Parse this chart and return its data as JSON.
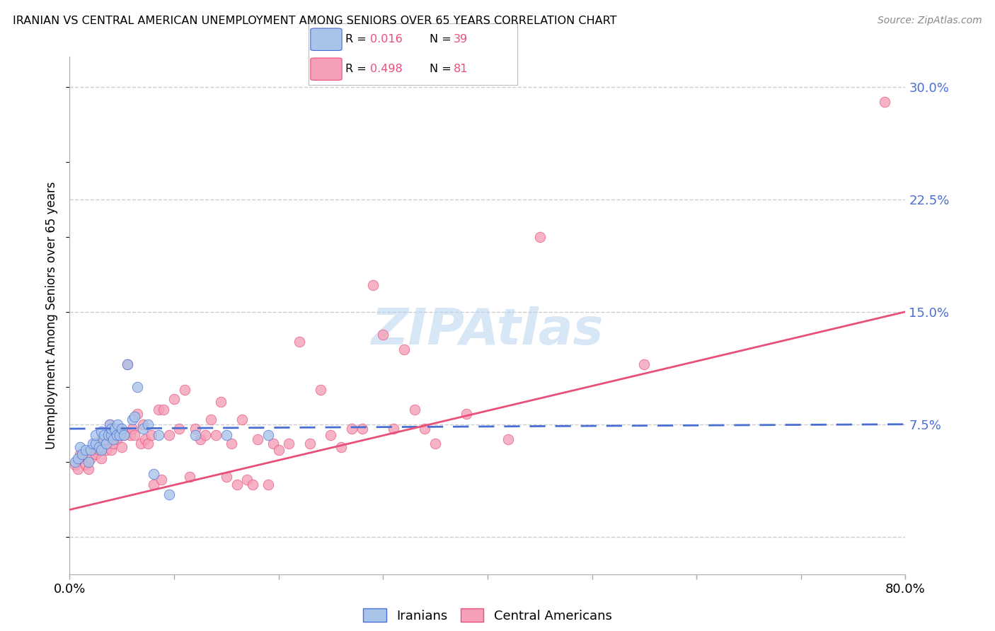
{
  "title": "IRANIAN VS CENTRAL AMERICAN UNEMPLOYMENT AMONG SENIORS OVER 65 YEARS CORRELATION CHART",
  "source": "Source: ZipAtlas.com",
  "ylabel": "Unemployment Among Seniors over 65 years",
  "xlim": [
    0.0,
    0.8
  ],
  "ylim": [
    -0.025,
    0.32
  ],
  "yticks": [
    0.0,
    0.075,
    0.15,
    0.225,
    0.3
  ],
  "ytick_labels": [
    "",
    "7.5%",
    "15.0%",
    "22.5%",
    "30.0%"
  ],
  "xticks": [
    0.0,
    0.1,
    0.2,
    0.3,
    0.4,
    0.5,
    0.6,
    0.7,
    0.8
  ],
  "xtick_labels": [
    "0.0%",
    "",
    "",
    "",
    "",
    "",
    "",
    "",
    "80.0%"
  ],
  "legend_r1": "R = 0.016",
  "legend_n1": "N = 39",
  "legend_r2": "R = 0.498",
  "legend_n2": "N = 81",
  "iranian_color": "#a8c4e8",
  "central_color": "#f5a0b8",
  "iranian_line_color": "#4a6fd4",
  "central_line_color": "#e8507a",
  "iranian_line_start_y": 0.072,
  "iranian_line_end_y": 0.075,
  "central_line_start_y": 0.018,
  "central_line_end_y": 0.15,
  "iranian_scatter_x": [
    0.005,
    0.008,
    0.01,
    0.012,
    0.015,
    0.018,
    0.02,
    0.022,
    0.025,
    0.025,
    0.028,
    0.03,
    0.03,
    0.032,
    0.033,
    0.035,
    0.037,
    0.038,
    0.04,
    0.04,
    0.042,
    0.043,
    0.045,
    0.046,
    0.048,
    0.05,
    0.052,
    0.055,
    0.06,
    0.062,
    0.065,
    0.07,
    0.075,
    0.08,
    0.085,
    0.095,
    0.12,
    0.15,
    0.19
  ],
  "iranian_scatter_y": [
    0.05,
    0.052,
    0.06,
    0.055,
    0.058,
    0.05,
    0.058,
    0.062,
    0.062,
    0.068,
    0.06,
    0.058,
    0.07,
    0.065,
    0.068,
    0.062,
    0.068,
    0.075,
    0.068,
    0.072,
    0.065,
    0.072,
    0.068,
    0.075,
    0.068,
    0.072,
    0.068,
    0.115,
    0.078,
    0.08,
    0.1,
    0.072,
    0.075,
    0.042,
    0.068,
    0.028,
    0.068,
    0.068,
    0.068
  ],
  "central_scatter_x": [
    0.005,
    0.008,
    0.01,
    0.012,
    0.015,
    0.018,
    0.02,
    0.022,
    0.025,
    0.025,
    0.028,
    0.03,
    0.03,
    0.032,
    0.033,
    0.035,
    0.037,
    0.038,
    0.04,
    0.04,
    0.042,
    0.043,
    0.045,
    0.048,
    0.05,
    0.052,
    0.055,
    0.058,
    0.06,
    0.062,
    0.065,
    0.068,
    0.07,
    0.072,
    0.075,
    0.078,
    0.08,
    0.085,
    0.088,
    0.09,
    0.095,
    0.1,
    0.105,
    0.11,
    0.115,
    0.12,
    0.125,
    0.13,
    0.135,
    0.14,
    0.145,
    0.15,
    0.155,
    0.16,
    0.165,
    0.17,
    0.175,
    0.18,
    0.19,
    0.195,
    0.2,
    0.21,
    0.22,
    0.23,
    0.24,
    0.25,
    0.26,
    0.27,
    0.28,
    0.29,
    0.3,
    0.31,
    0.32,
    0.33,
    0.34,
    0.35,
    0.38,
    0.42,
    0.45,
    0.55,
    0.78
  ],
  "central_scatter_y": [
    0.048,
    0.045,
    0.055,
    0.052,
    0.048,
    0.045,
    0.052,
    0.058,
    0.055,
    0.062,
    0.058,
    0.052,
    0.065,
    0.06,
    0.065,
    0.058,
    0.065,
    0.075,
    0.058,
    0.068,
    0.062,
    0.068,
    0.065,
    0.072,
    0.06,
    0.068,
    0.115,
    0.068,
    0.072,
    0.068,
    0.082,
    0.062,
    0.075,
    0.065,
    0.062,
    0.068,
    0.035,
    0.085,
    0.038,
    0.085,
    0.068,
    0.092,
    0.072,
    0.098,
    0.04,
    0.072,
    0.065,
    0.068,
    0.078,
    0.068,
    0.09,
    0.04,
    0.062,
    0.035,
    0.078,
    0.038,
    0.035,
    0.065,
    0.035,
    0.062,
    0.058,
    0.062,
    0.13,
    0.062,
    0.098,
    0.068,
    0.06,
    0.072,
    0.072,
    0.168,
    0.135,
    0.072,
    0.125,
    0.085,
    0.072,
    0.062,
    0.082,
    0.065,
    0.2,
    0.115,
    0.29
  ],
  "background_color": "#ffffff",
  "grid_color": "#cccccc",
  "watermark_text": "ZIPAtlas",
  "watermark_color": "#b8d4f0",
  "label_color": "#4a6fd4"
}
